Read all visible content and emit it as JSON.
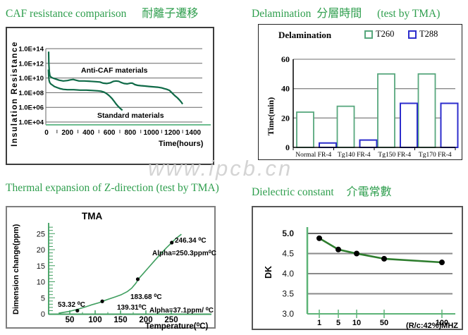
{
  "watermark": "www.ipcb.cn",
  "titles": {
    "caf": {
      "en": "CAF resistance comparison",
      "zh": "耐離子遷移"
    },
    "delam": {
      "en": "Delamination",
      "zh": "分層時間",
      "suffix": "(test by TMA)"
    },
    "tma": {
      "en": "Thermal expansion of Z-direction (test by TMA)"
    },
    "dk": {
      "en": "Dielectric constant",
      "zh": "介電常數"
    }
  },
  "chart_data": [
    {
      "id": "caf",
      "type": "line",
      "title": "CAF resistance comparison 耐離子遷移",
      "ylabel": "Insulation Resistance",
      "xlabel": "Time(hours)",
      "y_scale": "log",
      "ytick_labels": [
        "1.0E+14",
        "1.0E+12",
        "1.0E+10",
        "1.0E+08",
        "1.0E+06",
        "1.0E+04"
      ],
      "y_log_range": [
        4,
        14
      ],
      "xticks": [
        0,
        200,
        400,
        600,
        800,
        1000,
        1200,
        1400
      ],
      "xlim": [
        0,
        1400
      ],
      "grid": "horizontal",
      "line_color": "#0f6a47",
      "axis_color": "#6cbd8f",
      "series": [
        {
          "name": "Anti-CAF materials",
          "points_hours_log10ohm": [
            [
              20,
              13.6
            ],
            [
              22,
              12.0
            ],
            [
              26,
              10.9
            ],
            [
              32,
              10.3
            ],
            [
              45,
              10.1
            ],
            [
              60,
              10.0
            ],
            [
              90,
              9.85
            ],
            [
              120,
              9.7
            ],
            [
              160,
              9.6
            ],
            [
              200,
              9.65
            ],
            [
              230,
              9.75
            ],
            [
              255,
              9.8
            ],
            [
              280,
              9.7
            ],
            [
              310,
              9.6
            ],
            [
              360,
              9.6
            ],
            [
              420,
              9.55
            ],
            [
              470,
              9.5
            ],
            [
              510,
              9.45
            ],
            [
              540,
              9.3
            ],
            [
              575,
              9.25
            ],
            [
              610,
              9.35
            ],
            [
              640,
              9.55
            ],
            [
              665,
              9.6
            ],
            [
              690,
              9.55
            ],
            [
              710,
              9.4
            ],
            [
              740,
              9.25
            ],
            [
              770,
              9.2
            ],
            [
              800,
              9.3
            ],
            [
              820,
              9.3
            ],
            [
              845,
              9.1
            ],
            [
              870,
              9.0
            ],
            [
              900,
              8.95
            ],
            [
              940,
              8.9
            ],
            [
              980,
              8.85
            ],
            [
              1020,
              8.8
            ],
            [
              1060,
              8.75
            ],
            [
              1100,
              8.65
            ],
            [
              1125,
              8.55
            ],
            [
              1150,
              8.45
            ],
            [
              1175,
              8.3
            ],
            [
              1200,
              7.95
            ],
            [
              1225,
              7.6
            ],
            [
              1250,
              7.3
            ],
            [
              1270,
              7.0
            ],
            [
              1285,
              6.75
            ],
            [
              1300,
              6.45
            ]
          ]
        },
        {
          "name": "Standard materials",
          "points_hours_log10ohm": [
            [
              18,
              11.15
            ],
            [
              20,
              10.4
            ],
            [
              24,
              9.7
            ],
            [
              30,
              9.4
            ],
            [
              40,
              9.2
            ],
            [
              55,
              9.05
            ],
            [
              75,
              8.85
            ],
            [
              100,
              8.7
            ],
            [
              130,
              8.55
            ],
            [
              160,
              8.45
            ],
            [
              200,
              8.4
            ],
            [
              260,
              8.4
            ],
            [
              320,
              8.35
            ],
            [
              380,
              8.35
            ],
            [
              440,
              8.3
            ],
            [
              490,
              8.25
            ],
            [
              520,
              8.2
            ],
            [
              545,
              8.1
            ],
            [
              565,
              7.95
            ],
            [
              585,
              7.75
            ],
            [
              605,
              7.5
            ],
            [
              625,
              7.2
            ],
            [
              645,
              6.85
            ],
            [
              662,
              6.5
            ],
            [
              680,
              6.2
            ],
            [
              697,
              5.95
            ],
            [
              712,
              5.75
            ],
            [
              725,
              5.6
            ]
          ]
        }
      ]
    },
    {
      "id": "delam",
      "type": "bar",
      "title": "Delamination 分層時間 (test by TMA)",
      "panel_title": "Delamination",
      "ylabel": "Time(min)",
      "yticks": [
        0,
        20,
        40,
        60
      ],
      "ylim": [
        0,
        60
      ],
      "categories": [
        "Normal FR-4",
        "Tg140 FR-4",
        "Tg150 FR-4",
        "Tg170 FR-4"
      ],
      "legend": [
        {
          "label": "T260",
          "color": "#57a77d"
        },
        {
          "label": "T288",
          "color": "#2d2dcc"
        }
      ],
      "series": [
        {
          "name": "T260",
          "color": "#57a77d",
          "values": [
            24,
            28,
            50,
            50
          ]
        },
        {
          "name": "T288",
          "color": "#2d2dcc",
          "values": [
            3,
            5,
            30,
            30
          ]
        }
      ]
    },
    {
      "id": "tma",
      "type": "line",
      "title": "Thermal expansion of Z-direction (test by TMA)",
      "panel_title": "TMA",
      "ylabel": "Dimension change(ppm)",
      "xlabel": "Temperature(⁰C)",
      "yticks": [
        0,
        5,
        10,
        15,
        20,
        25
      ],
      "xticks": [
        50,
        100,
        150,
        200,
        250
      ],
      "line_color": "#3f9e5f",
      "curve_temp_ppm": [
        [
          28,
          0.2
        ],
        [
          50,
          0.8
        ],
        [
          65,
          1.4
        ],
        [
          80,
          2.1
        ],
        [
          95,
          2.9
        ],
        [
          108,
          3.5
        ],
        [
          114,
          3.9
        ],
        [
          125,
          4.5
        ],
        [
          140,
          5.3
        ],
        [
          152,
          6.0
        ],
        [
          163,
          6.9
        ],
        [
          172,
          8.0
        ],
        [
          180,
          9.5
        ],
        [
          186,
          11.0
        ],
        [
          195,
          12.6
        ],
        [
          205,
          14.4
        ],
        [
          215,
          16.2
        ],
        [
          228,
          18.5
        ],
        [
          240,
          20.5
        ],
        [
          251,
          22.2
        ],
        [
          260,
          23.6
        ],
        [
          270,
          24.8
        ]
      ],
      "markers_temp_ppm": [
        [
          65,
          1.0
        ],
        [
          114,
          3.9
        ],
        [
          184,
          10.8
        ],
        [
          251,
          22.2
        ]
      ],
      "annotations": [
        {
          "text": "53.32 ⁰C",
          "left": 72,
          "top": 133
        },
        {
          "text": "139.31⁰C",
          "left": 156,
          "top": 137
        },
        {
          "text": "183.68 ⁰C",
          "left": 175,
          "top": 122
        },
        {
          "text": "246.34 ⁰C",
          "left": 238,
          "top": 42
        },
        {
          "text": "Alpha=250.3ppm⁰C",
          "left": 206,
          "top": 60
        },
        {
          "text": "Alpha=37.1ppm/ ⁰C",
          "left": 202,
          "top": 141
        }
      ]
    },
    {
      "id": "dk",
      "type": "line",
      "title": "Dielectric constant 介電常數",
      "ylabel": "DK",
      "xlabel": "(R/c:42%)MHZ",
      "ytick_labels": [
        "5.0",
        "4.5",
        "4.0",
        "3.5",
        "3.0"
      ],
      "ytick_values": [
        5.0,
        4.5,
        4.0,
        3.5,
        3.0
      ],
      "x": [
        1,
        5,
        10,
        50,
        100
      ],
      "values": [
        4.88,
        4.6,
        4.5,
        4.37,
        4.28
      ],
      "line_color": "#2e7d2e",
      "axis_color": "#5cb377"
    }
  ]
}
